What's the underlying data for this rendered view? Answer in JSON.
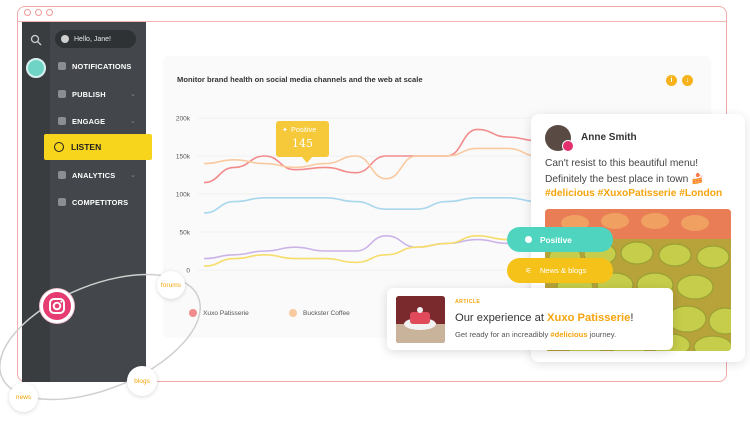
{
  "window": {
    "dots": 3
  },
  "sidebar": {
    "greeting": "Hello, Jane!",
    "items": [
      {
        "label": "NOTIFICATIONS",
        "icon": "bell-icon"
      },
      {
        "label": "PUBLISH",
        "icon": "send-icon"
      },
      {
        "label": "ENGAGE",
        "icon": "chat-icon"
      },
      {
        "label": "LISTEN",
        "icon": "ear-icon",
        "active": true
      },
      {
        "label": "ANALYTICS",
        "icon": "pie-chart-icon"
      },
      {
        "label": "COMPETITORS",
        "icon": "grid-icon"
      }
    ]
  },
  "panel": {
    "title": "Monitor brand health on social media channels and the web at scale",
    "info_icon": "info-icon",
    "download_icon": "download-icon"
  },
  "tooltip": {
    "label": "Positive",
    "value": "145"
  },
  "chart_data": {
    "type": "line",
    "yticks": [
      "200k",
      "150k",
      "100k",
      "50k",
      "0"
    ],
    "ylim": [
      0,
      200000
    ],
    "legend": [
      "Xuxo Patisserie",
      "Buckster Coffee"
    ],
    "series": [
      {
        "name": "Xuxo Patisserie",
        "color": "#f28b8b",
        "values": [
          115000,
          135000,
          150000,
          132000,
          135000,
          128000,
          150000,
          150000,
          150000,
          185000,
          175000,
          170000
        ]
      },
      {
        "name": "Buckster Coffee",
        "color": "#f9c9a0",
        "values": [
          140000,
          145000,
          140000,
          135000,
          140000,
          150000,
          120000,
          150000,
          150000,
          160000,
          160000,
          150000
        ]
      },
      {
        "color": "#a9d7ec",
        "values": [
          75000,
          90000,
          95000,
          95000,
          95000,
          90000,
          80000,
          80000,
          90000,
          95000,
          95000,
          90000
        ]
      },
      {
        "color": "#cbb3e8",
        "values": [
          15000,
          20000,
          25000,
          30000,
          25000,
          25000,
          45000,
          30000,
          35000,
          40000,
          35000,
          40000
        ]
      },
      {
        "color": "#f6dd6a",
        "values": [
          5000,
          15000,
          20000,
          15000,
          15000,
          10000,
          20000,
          30000,
          35000,
          45000,
          40000,
          40000
        ]
      }
    ]
  },
  "social_post": {
    "name": "Anne Smith",
    "text": "Can't resist to this beautiful menu! Definitely the best place in town 🍰",
    "tags": "#delicious #XuxoPatisserie #London",
    "network_icon": "instagram-icon"
  },
  "pills": {
    "positive": "Positive",
    "news": "News & blogs"
  },
  "article": {
    "kicker": "ARTICLE",
    "headline_pre": "Our experience at ",
    "headline_brand": "Xuxo Patisserie",
    "headline_post": "!",
    "sub_pre": "Get ready for an increadibly ",
    "sub_tag": "#delicious",
    "sub_post": " journey."
  },
  "orbit": {
    "forums": "forums",
    "blogs": "blogs",
    "news": "news"
  },
  "colors": {
    "accent": "#f5c21a",
    "teal": "#4fd5bf",
    "sidebar": "#43474b",
    "listen": "#f7d51d"
  }
}
